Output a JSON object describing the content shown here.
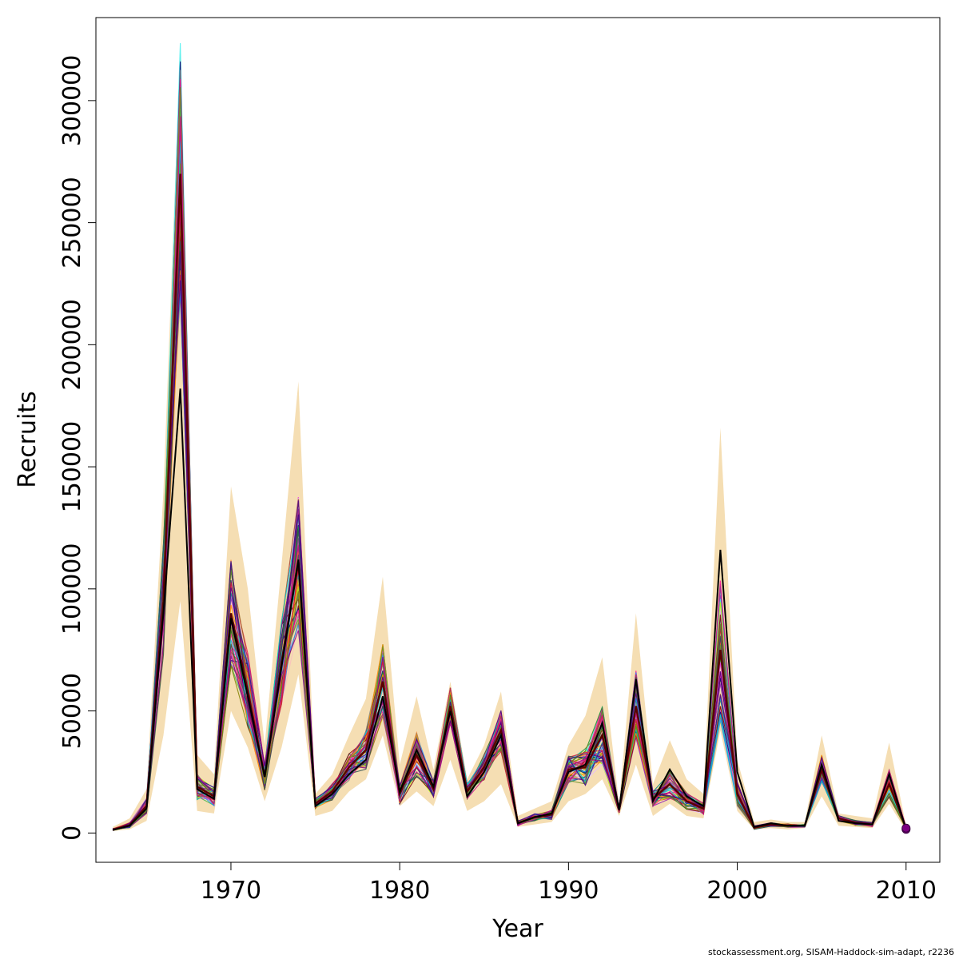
{
  "chart_data": {
    "type": "line",
    "xlabel": "Year",
    "ylabel": "Recruits",
    "xlim": [
      1962,
      2012
    ],
    "ylim": [
      -12000,
      334000
    ],
    "x_ticks": [
      1970,
      1980,
      1990,
      2000,
      2010
    ],
    "y_ticks": [
      0,
      50000,
      100000,
      150000,
      200000,
      250000,
      300000
    ],
    "x_tick_labels": [
      "1970",
      "1980",
      "1990",
      "2000",
      "2010"
    ],
    "y_tick_labels": [
      "0",
      "50000",
      "100000",
      "150000",
      "200000",
      "250000",
      "300000"
    ],
    "grid": false,
    "years": [
      1963,
      1964,
      1965,
      1966,
      1967,
      1968,
      1969,
      1970,
      1971,
      1972,
      1973,
      1974,
      1975,
      1976,
      1977,
      1978,
      1979,
      1980,
      1981,
      1982,
      1983,
      1984,
      1985,
      1986,
      1987,
      1988,
      1989,
      1990,
      1991,
      1992,
      1993,
      1994,
      1995,
      1996,
      1997,
      1998,
      1999,
      2000,
      2001,
      2002,
      2003,
      2004,
      2005,
      2006,
      2007,
      2008,
      2009,
      2010
    ],
    "band_upper": [
      2500,
      6000,
      18000,
      140000,
      322000,
      32000,
      24000,
      142000,
      100000,
      36000,
      110000,
      185000,
      16000,
      24000,
      40000,
      55000,
      105000,
      28000,
      56000,
      26000,
      62000,
      22000,
      36000,
      58000,
      7000,
      10000,
      13000,
      36000,
      48000,
      72000,
      12000,
      90000,
      20000,
      38000,
      22000,
      16000,
      166000,
      30000,
      4500,
      5500,
      4500,
      4500,
      40000,
      8000,
      7000,
      6000,
      37000,
      3000
    ],
    "band_lower": [
      800,
      1500,
      5000,
      40000,
      95000,
      9000,
      8000,
      50000,
      35000,
      13000,
      35000,
      65000,
      7000,
      9000,
      17000,
      22000,
      40000,
      11000,
      17000,
      11000,
      30000,
      9000,
      13000,
      20000,
      2500,
      3500,
      4500,
      13000,
      16000,
      22000,
      7000,
      28000,
      7000,
      12000,
      7000,
      6000,
      42000,
      9000,
      1500,
      2000,
      1500,
      2000,
      15000,
      3000,
      2500,
      2000,
      12000,
      800
    ],
    "series_point_estimate": {
      "values": [
        1200,
        3000,
        10000,
        90000,
        182000,
        18000,
        14000,
        88000,
        56000,
        23000,
        68000,
        112000,
        11000,
        16000,
        24000,
        30000,
        56000,
        17000,
        34000,
        19000,
        50000,
        15000,
        25000,
        40000,
        4000,
        6500,
        8000,
        25000,
        28000,
        45000,
        9500,
        63000,
        13000,
        26000,
        15000,
        11000,
        116000,
        25000,
        2500,
        4000,
        3000,
        3000,
        28000,
        5000,
        4000,
        3500,
        24000,
        1500
      ],
      "color": "#000000"
    },
    "series_mean": {
      "values": [
        1400,
        3200,
        11000,
        95000,
        270000,
        19000,
        15000,
        90000,
        58000,
        23000,
        70000,
        111000,
        12000,
        17000,
        27000,
        34000,
        62000,
        16000,
        32000,
        18000,
        52000,
        17000,
        27000,
        42000,
        4000,
        6500,
        7500,
        26000,
        27000,
        40000,
        9500,
        52000,
        14000,
        20000,
        13000,
        10000,
        75000,
        16000,
        2200,
        3500,
        3000,
        3000,
        26000,
        6000,
        4200,
        3500,
        20000,
        2000
      ],
      "color": "#5a0000"
    },
    "ensemble_colors": [
      "#e6194b",
      "#3cb44b",
      "#ffe119",
      "#4363d8",
      "#f58231",
      "#911eb4",
      "#46f0f0",
      "#f032e6",
      "#bcf60c",
      "#fabebe",
      "#008080",
      "#e6beff",
      "#9a6324",
      "#800000",
      "#808000",
      "#000075",
      "#808080",
      "#ff1493",
      "#228b22",
      "#1e90ff",
      "#ff8c00",
      "#8b008b",
      "#00ced1",
      "#dc143c",
      "#2f4f4f",
      "#6b8e23",
      "#c71585",
      "#4b0082"
    ],
    "band_color": "#f5deb3",
    "endpoint_color": "#7b0080"
  },
  "footer": "stockassessment.org, SISAM-Haddock-sim-adapt, r2236"
}
